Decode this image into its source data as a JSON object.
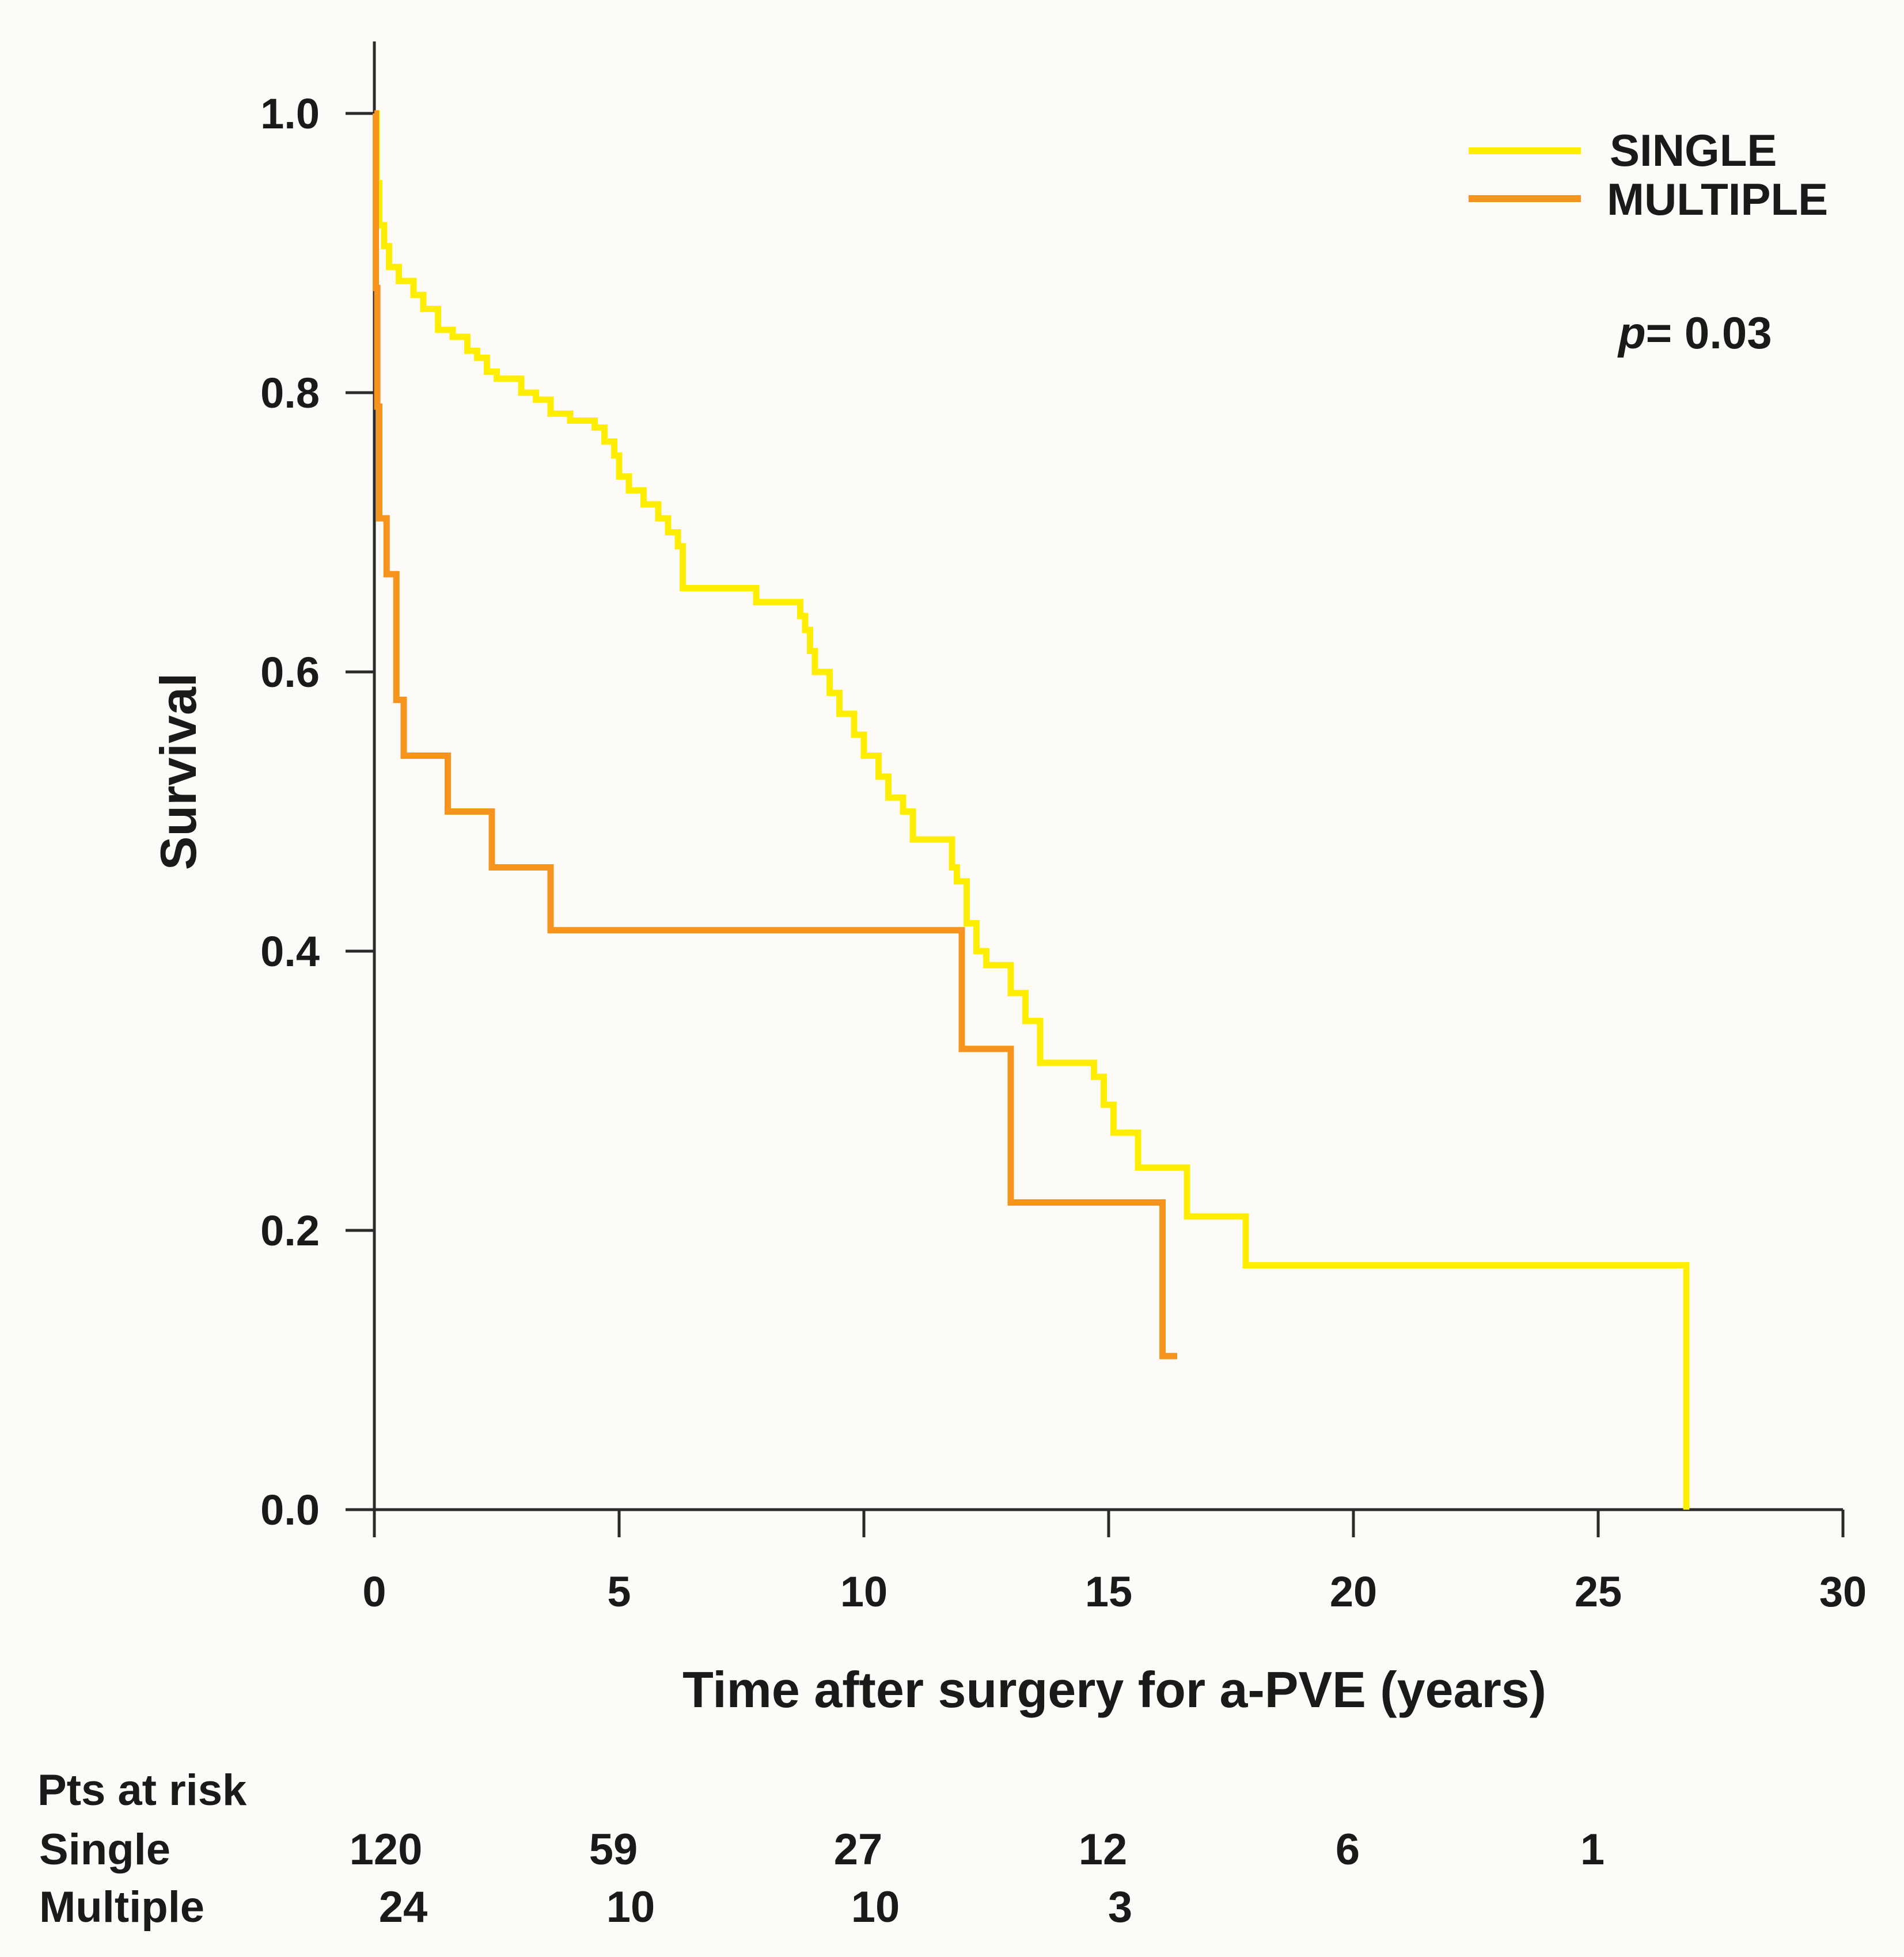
{
  "chart_data": {
    "type": "line",
    "subtype": "kaplan-meier",
    "title": "",
    "xlabel": "Time after surgery for a-PVE (years)",
    "ylabel": "Survival",
    "xlim": [
      0,
      30
    ],
    "ylim": [
      0,
      1.0
    ],
    "x_ticks": [
      "0",
      "5",
      "10",
      "15",
      "20",
      "25",
      "30"
    ],
    "y_ticks": [
      "0.0",
      "0.2",
      "0.4",
      "0.6",
      "0.8",
      "1.0"
    ],
    "x_tick_values": [
      0,
      5,
      10,
      15,
      20,
      25,
      30
    ],
    "y_tick_values": [
      0,
      0.2,
      0.4,
      0.6,
      0.8,
      1.0
    ],
    "grid": false,
    "legend_position": "top-right",
    "annotation": {
      "p_label": "p",
      "p_value": "= 0.03"
    },
    "series": [
      {
        "name": "SINGLE",
        "color": "#ffee00",
        "x": [
          0,
          0.05,
          0.1,
          0.2,
          0.3,
          0.5,
          0.8,
          1.0,
          1.3,
          1.6,
          1.9,
          2.1,
          2.3,
          2.5,
          3.0,
          3.3,
          3.6,
          4.0,
          4.5,
          4.7,
          4.9,
          5.0,
          5.2,
          5.5,
          5.8,
          6.0,
          6.2,
          6.3,
          7.8,
          8.7,
          8.8,
          8.9,
          9.0,
          9.3,
          9.5,
          9.8,
          10.0,
          10.3,
          10.5,
          10.8,
          11.0,
          11.8,
          11.9,
          12.1,
          12.3,
          12.5,
          13.0,
          13.3,
          13.6,
          14.7,
          14.9,
          15.1,
          15.6,
          16.0,
          16.6,
          16.8,
          17.8,
          18.0,
          26.8
        ],
        "y": [
          1.0,
          0.95,
          0.92,
          0.905,
          0.89,
          0.88,
          0.87,
          0.86,
          0.845,
          0.84,
          0.83,
          0.825,
          0.815,
          0.81,
          0.8,
          0.795,
          0.785,
          0.78,
          0.775,
          0.765,
          0.755,
          0.74,
          0.73,
          0.72,
          0.71,
          0.7,
          0.69,
          0.66,
          0.65,
          0.64,
          0.63,
          0.615,
          0.6,
          0.585,
          0.57,
          0.555,
          0.54,
          0.525,
          0.51,
          0.5,
          0.48,
          0.46,
          0.45,
          0.42,
          0.4,
          0.39,
          0.37,
          0.35,
          0.32,
          0.31,
          0.29,
          0.27,
          0.245,
          0.245,
          0.21,
          0.21,
          0.175,
          0.175,
          0.0
        ]
      },
      {
        "name": "MULTIPLE",
        "color": "#f7941d",
        "x": [
          0,
          0.03,
          0.06,
          0.1,
          0.25,
          0.45,
          0.6,
          1.5,
          2.4,
          3.6,
          12.0,
          13.0,
          16.1,
          16.4
        ],
        "y": [
          1.0,
          0.875,
          0.79,
          0.71,
          0.67,
          0.58,
          0.54,
          0.5,
          0.46,
          0.415,
          0.33,
          0.22,
          0.11,
          0.11
        ]
      }
    ],
    "risk_table": {
      "title": "Pts at risk",
      "rows": [
        {
          "label": "Single",
          "values": [
            "120",
            "59",
            "27",
            "12",
            "6",
            "1"
          ]
        },
        {
          "label": "Multiple",
          "values": [
            "24",
            "10",
            "10",
            "3"
          ]
        }
      ]
    }
  }
}
